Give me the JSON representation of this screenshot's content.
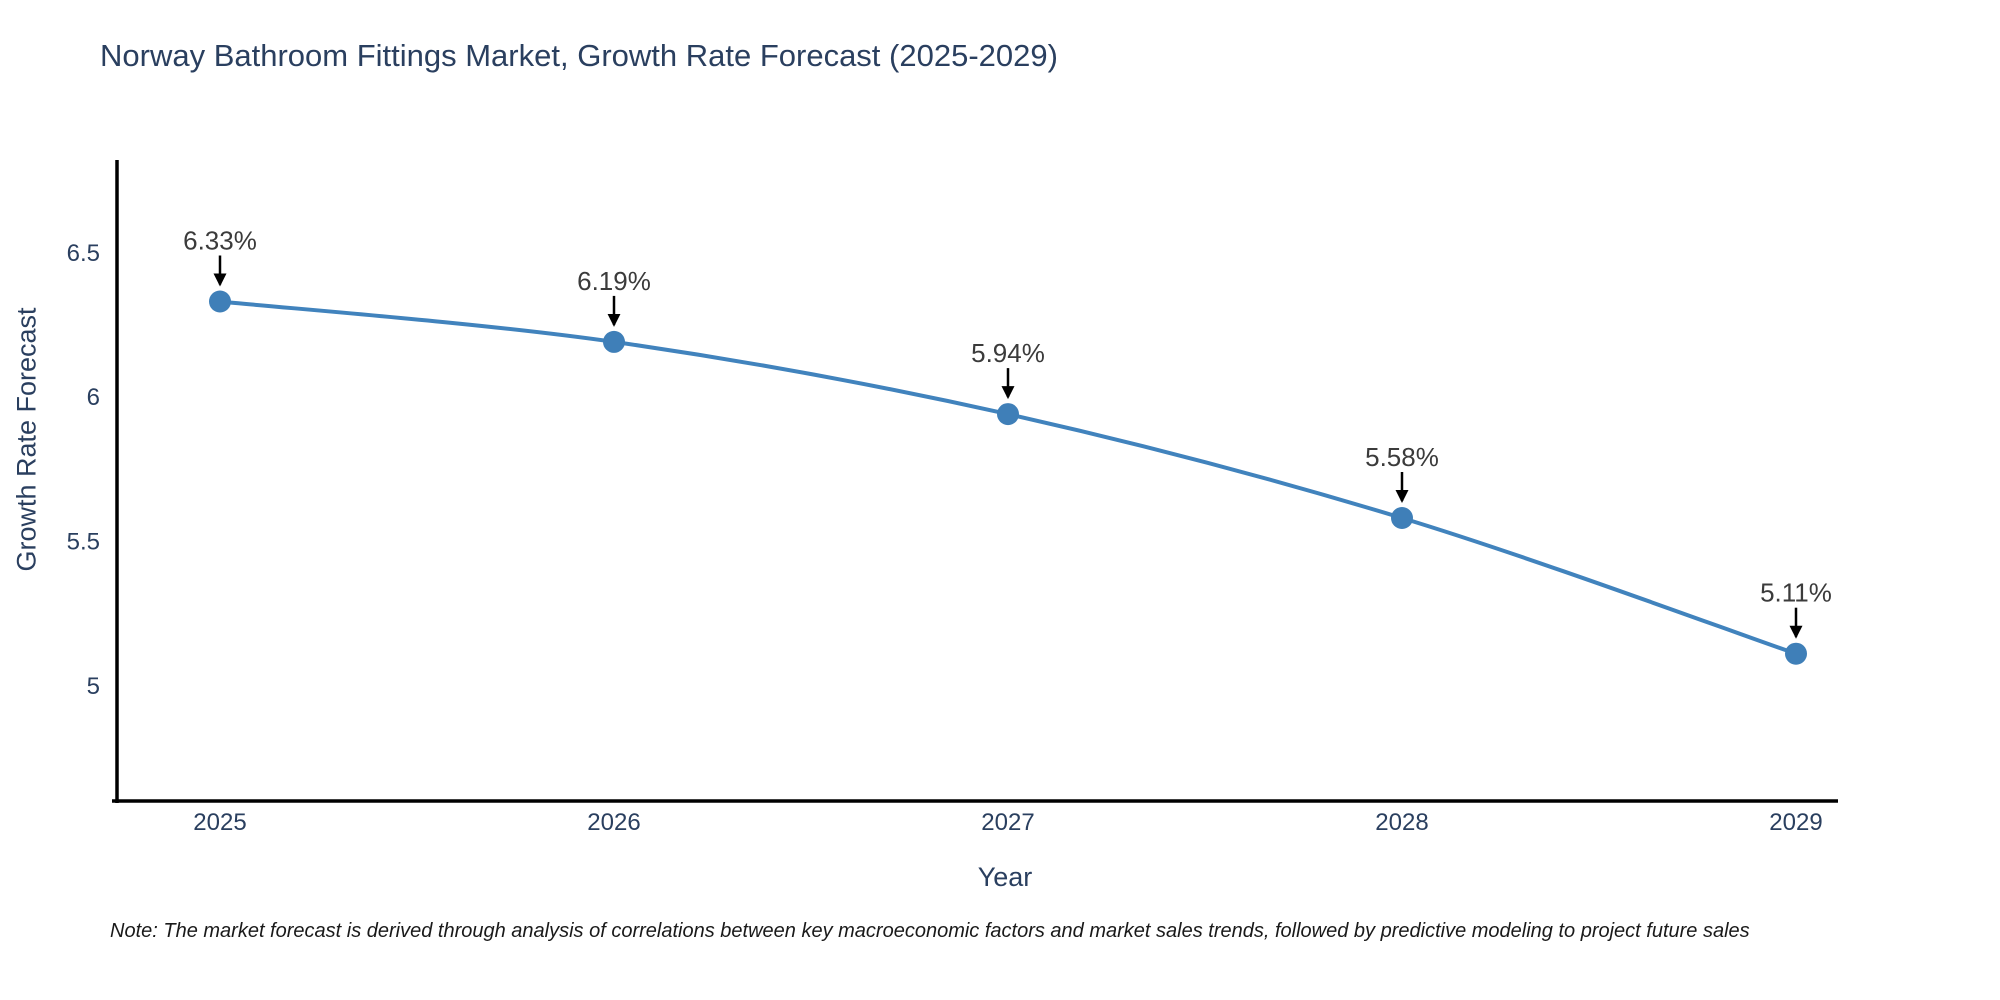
{
  "chart_data": {
    "type": "line",
    "title": "Norway Bathroom Fittings Market, Growth Rate Forecast (2025-2029)",
    "xlabel": "Year",
    "ylabel": "Growth Rate Forecast",
    "note": "Note: The market forecast is derived through analysis of correlations between key macroeconomic factors and market sales trends, followed by predictive modeling to project future sales",
    "categories": [
      "2025",
      "2026",
      "2027",
      "2028",
      "2029"
    ],
    "values": [
      6.33,
      6.19,
      5.94,
      5.58,
      5.11
    ],
    "point_labels": [
      "6.33%",
      "6.19%",
      "5.94%",
      "5.58%",
      "5.11%"
    ],
    "yticks": [
      5,
      5.5,
      6,
      6.5
    ],
    "ytick_labels": [
      "5",
      "5.5",
      "6",
      "6.5"
    ],
    "ylim": [
      4.6,
      6.82
    ],
    "grid": false,
    "legend": false,
    "line_color": "#4183bd",
    "marker_color": "#3f7fb8",
    "axis_color": "#000000",
    "tick_color": "#2a3f5f",
    "text_color": "#2a3f5f",
    "annotation_color": "#3b3b3b",
    "arrow_color": "#000000"
  }
}
